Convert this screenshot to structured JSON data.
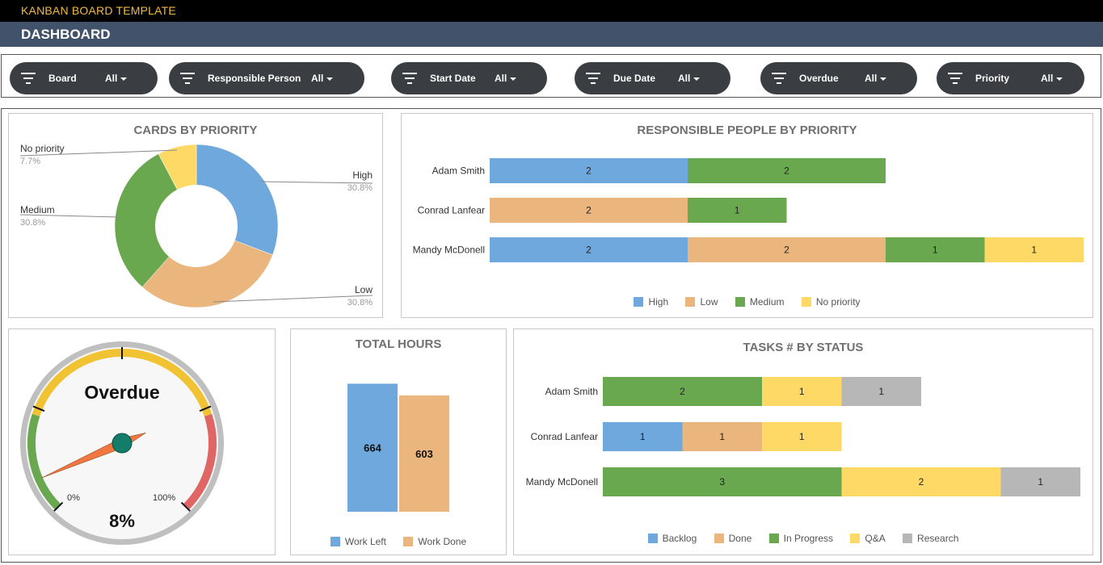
{
  "header": {
    "template_title": "KANBAN BOARD TEMPLATE",
    "dashboard_title": "DASHBOARD"
  },
  "filters": [
    {
      "label": "Board",
      "value": "All"
    },
    {
      "label": "Responsible Person",
      "value": "All"
    },
    {
      "label": "Start Date",
      "value": "All"
    },
    {
      "label": "Due Date",
      "value": "All"
    },
    {
      "label": "Overdue",
      "value": "All"
    },
    {
      "label": "Priority",
      "value": "All"
    }
  ],
  "colors": {
    "high": "#6fa8dc",
    "low": "#ebb57e",
    "medium": "#6aa84f",
    "no_priority": "#ffd966",
    "research": "#b7b7b7",
    "gauge_yellow": "#f1c232",
    "gauge_red": "#e06666",
    "gauge_green": "#6aa84f",
    "needle": "#f07840",
    "hub": "#137d6a"
  },
  "chart_data": [
    {
      "id": "cards_by_priority",
      "type": "pie",
      "title": "CARDS BY PRIORITY",
      "slices": [
        {
          "label": "High",
          "value": 30.8,
          "pct": "30.8%",
          "color": "#6fa8dc"
        },
        {
          "label": "Low",
          "value": 30.8,
          "pct": "30.8%",
          "color": "#ebb57e"
        },
        {
          "label": "Medium",
          "value": 30.8,
          "pct": "30.8%",
          "color": "#6aa84f"
        },
        {
          "label": "No priority",
          "value": 7.7,
          "pct": "7.7%",
          "color": "#ffd966"
        }
      ]
    },
    {
      "id": "responsible_people_by_priority",
      "type": "bar",
      "stacked": true,
      "orientation": "horizontal",
      "title": "RESPONSIBLE PEOPLE BY PRIORITY",
      "categories": [
        "Adam Smith",
        "Conrad Lanfear",
        "Mandy McDonell"
      ],
      "series": [
        {
          "name": "High",
          "values": [
            2,
            0,
            2
          ],
          "color": "#6fa8dc"
        },
        {
          "name": "Low",
          "values": [
            0,
            2,
            2
          ],
          "color": "#ebb57e"
        },
        {
          "name": "Medium",
          "values": [
            2,
            1,
            1
          ],
          "color": "#6aa84f"
        },
        {
          "name": "No priority",
          "values": [
            0,
            0,
            1
          ],
          "color": "#ffd966"
        }
      ],
      "xlim": [
        0,
        6
      ]
    },
    {
      "id": "overdue_gauge",
      "type": "gauge",
      "title": "Overdue",
      "value": 8,
      "value_label": "8%",
      "min_label": "0%",
      "max_label": "100%"
    },
    {
      "id": "total_hours",
      "type": "bar",
      "title": "TOTAL HOURS",
      "categories": [
        "Work Left",
        "Work Done"
      ],
      "values": [
        664,
        603
      ],
      "colors": [
        "#6fa8dc",
        "#ebb57e"
      ],
      "ylim": [
        0,
        720
      ]
    },
    {
      "id": "tasks_by_status",
      "type": "bar",
      "stacked": true,
      "orientation": "horizontal",
      "title": "TASKS # BY STATUS",
      "categories": [
        "Adam Smith",
        "Conrad Lanfear",
        "Mandy McDonell"
      ],
      "series": [
        {
          "name": "Backlog",
          "values": [
            0,
            1,
            0
          ],
          "color": "#6fa8dc"
        },
        {
          "name": "Done",
          "values": [
            0,
            1,
            0
          ],
          "color": "#ebb57e"
        },
        {
          "name": "In Progress",
          "values": [
            2,
            0,
            3
          ],
          "color": "#6aa84f"
        },
        {
          "name": "Q&A",
          "values": [
            1,
            1,
            2
          ],
          "color": "#ffd966"
        },
        {
          "name": "Research",
          "values": [
            1,
            0,
            1
          ],
          "color": "#b7b7b7"
        }
      ],
      "xlim": [
        0,
        6
      ]
    }
  ]
}
